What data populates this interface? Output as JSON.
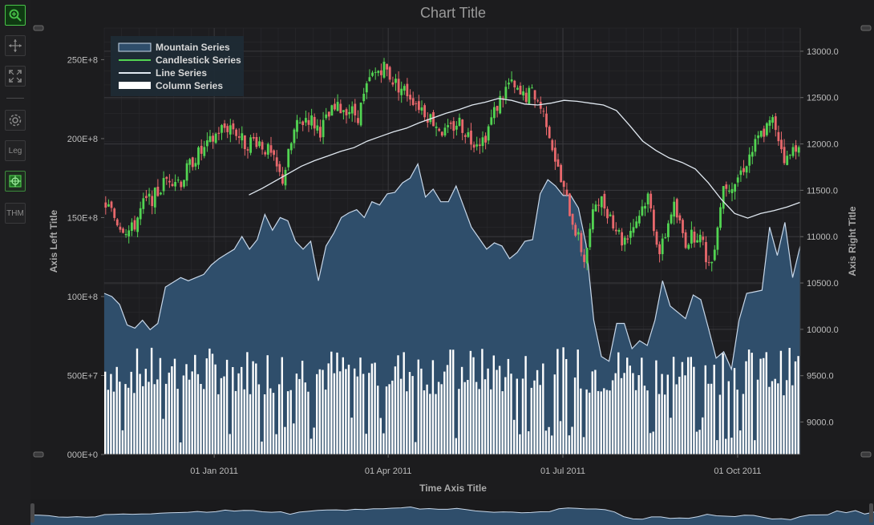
{
  "toolbar": {
    "items": [
      {
        "icon": "zoom-extents-icon",
        "label": ""
      },
      {
        "icon": "pan-icon",
        "label": ""
      },
      {
        "icon": "fullscreen-icon",
        "label": ""
      },
      {
        "icon": "settings-icon",
        "label": ""
      },
      {
        "icon": "legend-icon",
        "label": "Leg"
      },
      {
        "icon": "crosshair-icon",
        "label": ""
      },
      {
        "icon": "theme-icon",
        "label": "THM"
      }
    ]
  },
  "colors": {
    "background": "#1c1c1e",
    "plot_background": "#1d1d20",
    "mountain_fill": "#2f4e6b",
    "mountain_stroke": "#c8d8ea",
    "candle_up": "#52d452",
    "candle_down": "#e8686c",
    "line": "#e0e8f0",
    "column": "#ffffff",
    "gridline": "#2c2c30"
  },
  "chart_data": {
    "type": "line",
    "title": "Chart Title",
    "xlabel": "Time Axis Title",
    "ylabel_left": "Axis Left Title",
    "ylabel_right": "Axis Right Title",
    "x_ticks": [
      "01 Jan 2011",
      "01 Apr 2011",
      "01 Jul 2011",
      "01 Oct 2011"
    ],
    "y_left_ticks": [
      "000E+0",
      "500E+7",
      "100E+8",
      "150E+8",
      "200E+8",
      "250E+8"
    ],
    "y_left_range": [
      0,
      27000000000
    ],
    "y_right_ticks": [
      "9000.0",
      "9500.0",
      "10000.0",
      "10500.0",
      "11000.0",
      "11500.0",
      "12000.0",
      "12500.0",
      "13000.0"
    ],
    "y_right_range": [
      8650,
      13250
    ],
    "legend": {
      "placement": "top-left",
      "entries": [
        "Mountain Series",
        "Candlestick Series",
        "Line Series",
        "Column Series"
      ]
    },
    "grid": true,
    "series": [
      {
        "name": "Mountain Series",
        "type": "area",
        "axis": "left",
        "values": [
          10200000000,
          10000000000,
          9500000000,
          8200000000,
          8000000000,
          8500000000,
          7900000000,
          8300000000,
          10600000000,
          10900000000,
          11200000000,
          11000000000,
          11200000000,
          11400000000,
          12000000000,
          12400000000,
          12700000000,
          13000000000,
          13800000000,
          13000000000,
          13600000000,
          15200000000,
          14200000000,
          15000000000,
          14800000000,
          13500000000,
          13000000000,
          13500000000,
          11000000000,
          13200000000,
          14000000000,
          15000000000,
          15300000000,
          15500000000,
          15000000000,
          16000000000,
          15800000000,
          16500000000,
          16600000000,
          17200000000,
          17500000000,
          18400000000,
          16300000000,
          16800000000,
          16000000000,
          16000000000,
          17000000000,
          15700000000,
          14400000000,
          13700000000,
          13000000000,
          13400000000,
          13200000000,
          12400000000,
          12800000000,
          13500000000,
          13600000000,
          16500000000,
          17400000000,
          17000000000,
          16400000000,
          16400000000,
          15600000000,
          13300000000,
          8500000000,
          6200000000,
          5900000000,
          8300000000,
          8300000000,
          6700000000,
          7200000000,
          6900000000,
          8500000000,
          11000000000,
          9400000000,
          9000000000,
          8600000000,
          10100000000,
          9800000000,
          8000000000,
          6100000000,
          6500000000,
          5400000000,
          8500000000,
          10200000000,
          10300000000,
          10400000000,
          14400000000,
          12600000000,
          14700000000,
          11200000000,
          13200000000
        ]
      },
      {
        "name": "Candlestick Series",
        "type": "candlestick",
        "axis": "right",
        "count": 240,
        "close_trend": [
          11350,
          11150,
          11050,
          11350,
          11450,
          11650,
          11600,
          11850,
          11950,
          12150,
          12200,
          12000,
          12050,
          11900,
          11600,
          12150,
          12300,
          12150,
          12350,
          12400,
          12300,
          12700,
          12850,
          12650,
          12550,
          12400,
          12250,
          12100,
          12250,
          12050,
          12050,
          12400,
          12650,
          12500,
          12550,
          12250,
          11650,
          11200,
          10750,
          11450,
          11250,
          10950,
          11150,
          11450,
          10800,
          11350,
          10950,
          11050,
          10650,
          11550,
          11600,
          11850,
          12100,
          12250,
          11800,
          12050
        ]
      },
      {
        "name": "Line Series",
        "type": "line",
        "axis": "right",
        "values": [
          11450,
          11520,
          11600,
          11680,
          11760,
          11820,
          11870,
          11920,
          11960,
          12030,
          12080,
          12130,
          12170,
          12230,
          12280,
          12330,
          12370,
          12420,
          12450,
          12490,
          12470,
          12430,
          12420,
          12440,
          12470,
          12460,
          12440,
          12420,
          12360,
          12200,
          12030,
          11930,
          11850,
          11800,
          11730,
          11580,
          11400,
          11250,
          11200,
          11250,
          11280,
          11320,
          11370
        ]
      },
      {
        "name": "Column Series",
        "type": "bar",
        "axis": "left",
        "count": 240,
        "value_range": [
          0,
          6800000000
        ]
      }
    ]
  }
}
